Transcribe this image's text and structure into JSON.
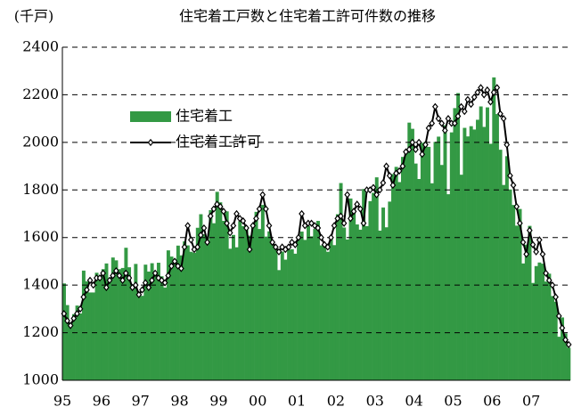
{
  "chart_data": {
    "type": "bar-line",
    "title": "住宅着工戸数と住宅着工許可件数の推移",
    "y_unit": "(千戸)",
    "categories": [
      "95",
      null,
      null,
      null,
      null,
      null,
      null,
      null,
      null,
      null,
      null,
      null,
      "96",
      null,
      null,
      null,
      null,
      null,
      null,
      null,
      null,
      null,
      null,
      null,
      "97",
      null,
      null,
      null,
      null,
      null,
      null,
      null,
      null,
      null,
      null,
      null,
      "98",
      null,
      null,
      null,
      null,
      null,
      null,
      null,
      null,
      null,
      null,
      null,
      "99",
      null,
      null,
      null,
      null,
      null,
      null,
      null,
      null,
      null,
      null,
      null,
      "00",
      null,
      null,
      null,
      null,
      null,
      null,
      null,
      null,
      null,
      null,
      null,
      "01",
      null,
      null,
      null,
      null,
      null,
      null,
      null,
      null,
      null,
      null,
      null,
      "02",
      null,
      null,
      null,
      null,
      null,
      null,
      null,
      null,
      null,
      null,
      null,
      "03",
      null,
      null,
      null,
      null,
      null,
      null,
      null,
      null,
      null,
      null,
      null,
      "04",
      null,
      null,
      null,
      null,
      null,
      null,
      null,
      null,
      null,
      null,
      null,
      "05",
      null,
      null,
      null,
      null,
      null,
      null,
      null,
      null,
      null,
      null,
      null,
      "06",
      null,
      null,
      null,
      null,
      null,
      null,
      null,
      null,
      null,
      null,
      null,
      "07",
      null,
      null,
      null,
      null,
      null,
      null,
      null,
      null,
      null,
      null,
      null
    ],
    "series": [
      {
        "name": "住宅着工",
        "kind": "bar",
        "color": "#339944",
        "values": [
          1407,
          1316,
          1243,
          1278,
          1314,
          1281,
          1461,
          1416,
          1369,
          1369,
          1452,
          1431,
          1467,
          1491,
          1424,
          1516,
          1504,
          1467,
          1472,
          1557,
          1475,
          1392,
          1489,
          1370,
          1355,
          1486,
          1457,
          1492,
          1442,
          1494,
          1437,
          1390,
          1546,
          1520,
          1510,
          1566,
          1525,
          1584,
          1567,
          1540,
          1536,
          1641,
          1698,
          1614,
          1582,
          1715,
          1660,
          1792,
          1748,
          1670,
          1710,
          1553,
          1611,
          1559,
          1669,
          1648,
          1635,
          1608,
          1648,
          1708,
          1636,
          1737,
          1604,
          1626,
          1575,
          1559,
          1463,
          1541,
          1507,
          1549,
          1551,
          1532,
          1600,
          1625,
          1590,
          1649,
          1605,
          1636,
          1670,
          1567,
          1562,
          1540,
          1602,
          1568,
          1698,
          1829,
          1642,
          1592,
          1764,
          1717,
          1655,
          1633,
          1804,
          1648,
          1753,
          1788,
          1853,
          1629,
          1726,
          1643,
          1751,
          1867,
          1897,
          1833,
          1939,
          1967,
          2083,
          2057,
          1911,
          1846,
          1998,
          2003,
          1981,
          1828,
          2002,
          2024,
          1905,
          2072,
          1782,
          2042,
          2144,
          2207,
          1864,
          2061,
          2025,
          2068,
          2054,
          2095,
          2151,
          2065,
          2147,
          1994,
          2273,
          2119,
          1969,
          1821,
          1942,
          1802,
          1737,
          1650,
          1720,
          1491,
          1570,
          1649,
          1409,
          1480,
          1495,
          1490,
          1415,
          1448,
          1354,
          1330,
          1183,
          1264,
          1197,
          1137
        ]
      },
      {
        "name": "住宅着工許可",
        "kind": "line",
        "color": "#000000",
        "values": [
          1280,
          1250,
          1230,
          1260,
          1280,
          1300,
          1350,
          1380,
          1420,
          1400,
          1430,
          1430,
          1450,
          1390,
          1420,
          1440,
          1460,
          1440,
          1420,
          1450,
          1430,
          1390,
          1400,
          1360,
          1380,
          1410,
          1390,
          1420,
          1450,
          1430,
          1420,
          1410,
          1440,
          1480,
          1500,
          1480,
          1470,
          1560,
          1650,
          1590,
          1550,
          1560,
          1610,
          1640,
          1580,
          1690,
          1720,
          1740,
          1730,
          1710,
          1660,
          1620,
          1650,
          1700,
          1680,
          1670,
          1640,
          1550,
          1650,
          1680,
          1720,
          1780,
          1720,
          1650,
          1580,
          1560,
          1540,
          1560,
          1550,
          1560,
          1580,
          1570,
          1600,
          1700,
          1650,
          1660,
          1660,
          1650,
          1640,
          1600,
          1570,
          1560,
          1600,
          1650,
          1680,
          1690,
          1660,
          1780,
          1680,
          1710,
          1740,
          1720,
          1660,
          1800,
          1800,
          1810,
          1780,
          1800,
          1830,
          1900,
          1860,
          1820,
          1870,
          1880,
          1900,
          1960,
          1970,
          2000,
          1970,
          2000,
          1950,
          1990,
          2060,
          2080,
          2150,
          2100,
          2080,
          2050,
          2100,
          2080,
          2080,
          2110,
          2150,
          2130,
          2180,
          2160,
          2190,
          2210,
          2230,
          2200,
          2220,
          2170,
          2210,
          2230,
          2120,
          2100,
          1990,
          1860,
          1820,
          1730,
          1660,
          1580,
          1530,
          1630,
          1570,
          1540,
          1590,
          1530,
          1450,
          1420,
          1400,
          1350,
          1270,
          1220,
          1170,
          1150
        ]
      }
    ],
    "ylim": [
      1000,
      2400
    ],
    "yticks": [
      1000,
      1200,
      1400,
      1600,
      1800,
      2000,
      2200,
      2400
    ],
    "grid": true
  }
}
